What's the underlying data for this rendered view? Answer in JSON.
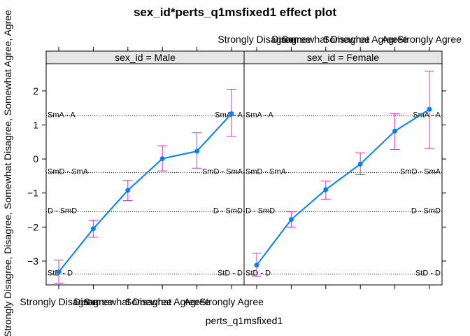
{
  "chart_data": {
    "type": "line",
    "title": "sex_id*perts_q1msfixed1 effect plot",
    "xlabel": "perts_q1msfixed1",
    "ylabel": "Strongly Disagree, Disagree, Somewhat Disagree, Somewhat Agree, Agree",
    "categories": [
      "Strongly Disagree",
      "Disagree",
      "Somewhat Disagree",
      "Somewhat Agree",
      "Agree",
      "Strongly Agree"
    ],
    "ylim": [
      -3.7,
      2.8
    ],
    "yticks": [
      -3,
      -2,
      -1,
      0,
      1,
      2
    ],
    "line_color": "#0080ff",
    "errorbar_color": "#cc33cc",
    "strip_fill": "#e6e6e6",
    "thresholds": [
      {
        "label": "SmA - A",
        "value": 1.27
      },
      {
        "label": "SmD - SmA",
        "value": -0.4
      },
      {
        "label": "D - SmD",
        "value": -1.55
      },
      {
        "label": "StD - D",
        "value": -3.38
      }
    ],
    "panels": [
      {
        "strip": "sex_id = Male",
        "values": [
          -3.32,
          -2.05,
          -0.92,
          0.01,
          0.23,
          1.33
        ],
        "lower": [
          -3.65,
          -2.3,
          -1.22,
          -0.35,
          -0.27,
          0.66
        ],
        "upper": [
          -2.97,
          -1.8,
          -0.63,
          0.39,
          0.77,
          2.05
        ]
      },
      {
        "strip": "sex_id = Female",
        "values": [
          -3.12,
          -1.78,
          -0.9,
          -0.15,
          0.82,
          1.46
        ],
        "lower": [
          -3.45,
          -2.0,
          -1.18,
          -0.46,
          0.28,
          0.31
        ],
        "upper": [
          -2.77,
          -1.55,
          -0.65,
          0.18,
          1.33,
          2.58
        ]
      }
    ]
  }
}
